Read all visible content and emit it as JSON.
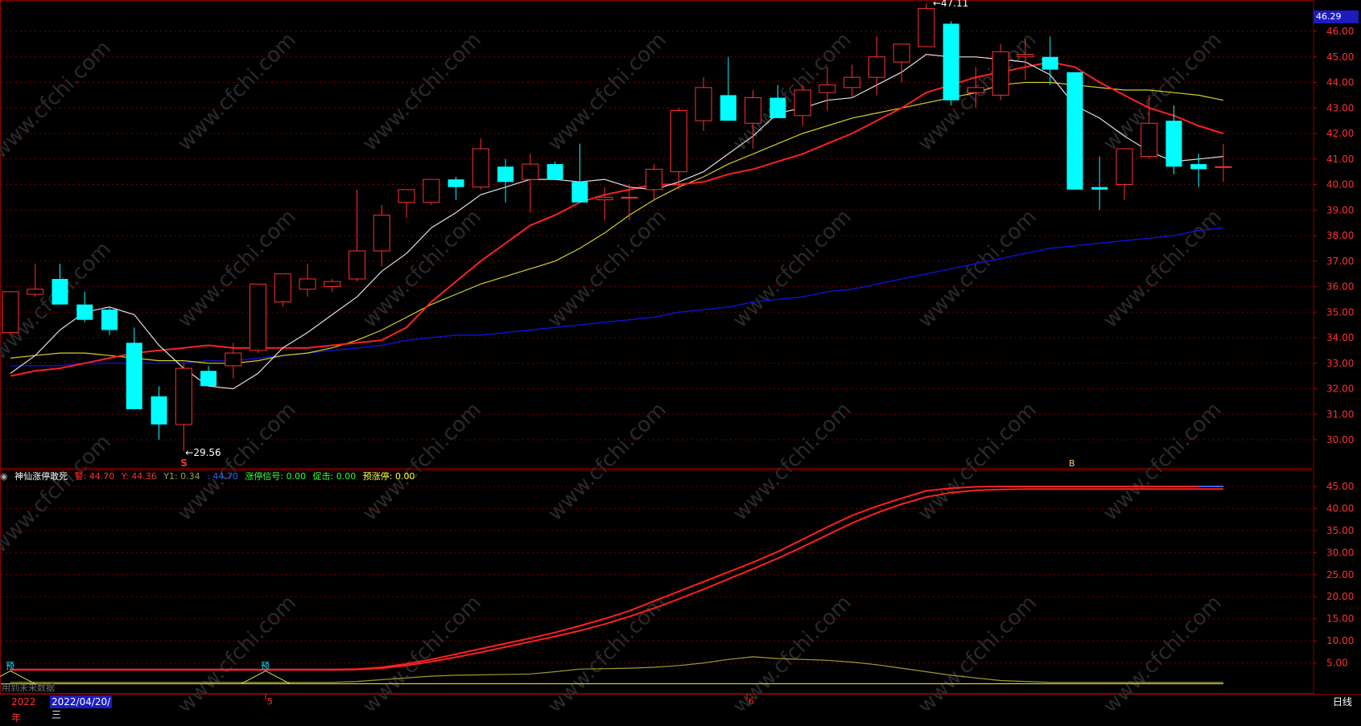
{
  "chart_data": {
    "type": "candlestick",
    "period": "日线",
    "year_label": "2022年",
    "cursor_date": "2022/04/20/三",
    "current_price": "46.29",
    "ylim": [
      29.3,
      46.6
    ],
    "y_ticks": [
      "46.00",
      "45.00",
      "44.00",
      "43.00",
      "42.00",
      "41.00",
      "40.00",
      "39.00",
      "38.00",
      "37.00",
      "36.00",
      "35.00",
      "34.00",
      "33.00",
      "32.00",
      "31.00",
      "30.00"
    ],
    "candles": [
      {
        "o": 34.2,
        "h": 35.8,
        "l": 34.1,
        "c": 35.8
      },
      {
        "o": 35.7,
        "h": 36.9,
        "l": 35.6,
        "c": 35.9
      },
      {
        "o": 36.3,
        "h": 36.9,
        "l": 35.3,
        "c": 35.3
      },
      {
        "o": 35.3,
        "h": 35.8,
        "l": 34.6,
        "c": 34.7
      },
      {
        "o": 35.1,
        "h": 35.2,
        "l": 34.1,
        "c": 34.3
      },
      {
        "o": 33.8,
        "h": 34.4,
        "l": 31.2,
        "c": 31.2
      },
      {
        "o": 31.7,
        "h": 32.1,
        "l": 30.0,
        "c": 30.6
      },
      {
        "o": 30.6,
        "h": 33.0,
        "l": 29.56,
        "c": 32.8
      },
      {
        "o": 32.7,
        "h": 32.9,
        "l": 32.1,
        "c": 32.1
      },
      {
        "o": 32.9,
        "h": 33.8,
        "l": 32.4,
        "c": 33.4
      },
      {
        "o": 33.5,
        "h": 36.1,
        "l": 33.4,
        "c": 36.1
      },
      {
        "o": 35.4,
        "h": 36.5,
        "l": 35.2,
        "c": 36.5
      },
      {
        "o": 35.9,
        "h": 36.9,
        "l": 35.6,
        "c": 36.3
      },
      {
        "o": 36.0,
        "h": 36.3,
        "l": 35.8,
        "c": 36.2
      },
      {
        "o": 36.3,
        "h": 39.8,
        "l": 36.2,
        "c": 37.4
      },
      {
        "o": 37.4,
        "h": 39.2,
        "l": 36.8,
        "c": 38.8
      },
      {
        "o": 39.3,
        "h": 39.7,
        "l": 38.7,
        "c": 39.8
      },
      {
        "o": 39.3,
        "h": 40.2,
        "l": 39.2,
        "c": 40.2
      },
      {
        "o": 40.2,
        "h": 40.3,
        "l": 39.4,
        "c": 39.9
      },
      {
        "o": 39.9,
        "h": 41.8,
        "l": 39.8,
        "c": 41.4
      },
      {
        "o": 40.7,
        "h": 41.0,
        "l": 39.3,
        "c": 40.1
      },
      {
        "o": 40.2,
        "h": 41.2,
        "l": 38.9,
        "c": 40.8
      },
      {
        "o": 40.8,
        "h": 40.9,
        "l": 40.2,
        "c": 40.2
      },
      {
        "o": 40.1,
        "h": 41.6,
        "l": 39.3,
        "c": 39.3
      },
      {
        "o": 39.4,
        "h": 39.9,
        "l": 38.6,
        "c": 39.5
      },
      {
        "o": 39.5,
        "h": 40.0,
        "l": 38.6,
        "c": 39.5
      },
      {
        "o": 39.8,
        "h": 40.8,
        "l": 39.4,
        "c": 40.6
      },
      {
        "o": 40.5,
        "h": 43.0,
        "l": 39.8,
        "c": 42.9
      },
      {
        "o": 42.5,
        "h": 44.2,
        "l": 42.1,
        "c": 43.8
      },
      {
        "o": 43.5,
        "h": 45.0,
        "l": 42.5,
        "c": 42.5
      },
      {
        "o": 42.4,
        "h": 43.7,
        "l": 41.4,
        "c": 43.4
      },
      {
        "o": 43.4,
        "h": 43.9,
        "l": 42.6,
        "c": 42.6
      },
      {
        "o": 42.7,
        "h": 43.9,
        "l": 42.3,
        "c": 43.7
      },
      {
        "o": 43.6,
        "h": 44.6,
        "l": 42.9,
        "c": 43.9
      },
      {
        "o": 43.8,
        "h": 44.7,
        "l": 43.4,
        "c": 44.2
      },
      {
        "o": 44.2,
        "h": 45.8,
        "l": 43.5,
        "c": 45.0
      },
      {
        "o": 44.8,
        "h": 45.5,
        "l": 44.0,
        "c": 45.5
      },
      {
        "o": 45.4,
        "h": 47.11,
        "l": 45.4,
        "c": 46.9
      },
      {
        "o": 46.3,
        "h": 46.4,
        "l": 43.1,
        "c": 43.3
      },
      {
        "o": 43.6,
        "h": 44.6,
        "l": 43.0,
        "c": 43.8
      },
      {
        "o": 43.5,
        "h": 45.5,
        "l": 43.3,
        "c": 45.2
      },
      {
        "o": 45.0,
        "h": 45.7,
        "l": 44.1,
        "c": 45.1
      },
      {
        "o": 45.0,
        "h": 45.8,
        "l": 43.9,
        "c": 44.5
      },
      {
        "o": 44.4,
        "h": 44.4,
        "l": 39.8,
        "c": 39.8
      },
      {
        "o": 39.9,
        "h": 41.1,
        "l": 39.0,
        "c": 39.8
      },
      {
        "o": 40.0,
        "h": 41.4,
        "l": 39.4,
        "c": 41.4
      },
      {
        "o": 41.1,
        "h": 43.5,
        "l": 41.0,
        "c": 42.4
      },
      {
        "o": 42.5,
        "h": 43.1,
        "l": 40.4,
        "c": 40.7
      },
      {
        "o": 40.8,
        "h": 41.2,
        "l": 39.9,
        "c": 40.6
      },
      {
        "o": 40.7,
        "h": 41.6,
        "l": 40.1,
        "c": 40.7
      }
    ],
    "ma5": [
      32.6,
      33.3,
      34.3,
      35.0,
      35.2,
      34.9,
      33.7,
      32.8,
      32.1,
      32.0,
      32.6,
      33.6,
      34.2,
      34.9,
      35.6,
      36.6,
      37.3,
      38.3,
      38.9,
      39.6,
      39.9,
      40.2,
      40.2,
      40.1,
      40.2,
      39.9,
      39.8,
      40.1,
      40.5,
      41.2,
      41.9,
      42.8,
      43.0,
      43.3,
      43.4,
      43.9,
      44.4,
      45.1,
      45.0,
      45.0,
      44.9,
      44.8,
      44.3,
      43.1,
      42.6,
      41.9,
      41.3,
      40.9,
      41.0,
      41.1
    ],
    "ma10": [
      32.5,
      32.7,
      32.8,
      33.0,
      33.2,
      33.4,
      33.5,
      33.6,
      33.7,
      33.6,
      33.6,
      33.6,
      33.6,
      33.7,
      33.8,
      33.9,
      34.4,
      35.4,
      36.2,
      37.0,
      37.7,
      38.4,
      38.8,
      39.3,
      39.6,
      39.8,
      40.0,
      40.0,
      40.1,
      40.4,
      40.6,
      40.9,
      41.2,
      41.6,
      42.0,
      42.5,
      43.0,
      43.6,
      43.9,
      44.2,
      44.4,
      44.6,
      44.8,
      44.6,
      44.0,
      43.5,
      43.0,
      42.7,
      42.3,
      42.0
    ],
    "ma20": [
      33.2,
      33.3,
      33.4,
      33.4,
      33.3,
      33.2,
      33.1,
      33.1,
      33.0,
      33.0,
      33.1,
      33.3,
      33.4,
      33.6,
      33.9,
      34.3,
      34.8,
      35.3,
      35.7,
      36.1,
      36.4,
      36.7,
      37.0,
      37.5,
      38.1,
      38.8,
      39.4,
      39.9,
      40.3,
      40.8,
      41.2,
      41.6,
      42.0,
      42.3,
      42.6,
      42.8,
      43.0,
      43.2,
      43.4,
      43.6,
      43.9,
      44.0,
      44.0,
      43.9,
      43.8,
      43.7,
      43.7,
      43.6,
      43.5,
      43.3
    ],
    "ma60": [
      32.9,
      32.9,
      32.9,
      33.0,
      33.0,
      33.0,
      33.0,
      33.0,
      33.1,
      33.1,
      33.2,
      33.3,
      33.4,
      33.5,
      33.6,
      33.7,
      33.9,
      34.0,
      34.1,
      34.1,
      34.2,
      34.3,
      34.4,
      34.5,
      34.6,
      34.7,
      34.8,
      35.0,
      35.1,
      35.2,
      35.4,
      35.5,
      35.6,
      35.8,
      35.9,
      36.1,
      36.3,
      36.5,
      36.7,
      36.9,
      37.1,
      37.3,
      37.5,
      37.6,
      37.7,
      37.8,
      37.9,
      38.0,
      38.2,
      38.3
    ],
    "annotations": {
      "high_label": "47.11",
      "low_label": "29.56",
      "s_marker": "S",
      "b_marker": "B"
    },
    "indicator": {
      "name": "神仙涨停敢死",
      "fields": [
        {
          "label": "警: 44.70",
          "color": "#ff3030"
        },
        {
          "label": "Y: 44.36",
          "color": "#ff3030"
        },
        {
          "label": "Y1: 0.34",
          "color": "#a0a040"
        },
        {
          "label": ": 44.70",
          "color": "#3060ff"
        },
        {
          "label": "涨停信号: 0.00",
          "color": "#30ff30"
        },
        {
          "label": "促击: 0.00",
          "color": "#30ff30"
        },
        {
          "label": "预涨停: 0.00",
          "color": "#ffff30"
        }
      ],
      "ylim": [
        0,
        48
      ],
      "y_ticks": [
        "45.00",
        "40.00",
        "35.00",
        "30.00",
        "25.00",
        "20.00",
        "15.00",
        "10.00",
        "5.00"
      ],
      "line_a": [
        3.5,
        3.5,
        3.5,
        3.5,
        3.5,
        3.5,
        3.5,
        3.5,
        3.5,
        3.5,
        3.5,
        3.5,
        3.5,
        3.5,
        3.6,
        4.0,
        4.8,
        5.8,
        7.0,
        8.2,
        9.4,
        10.6,
        11.9,
        13.4,
        15.0,
        16.8,
        19.0,
        21.2,
        23.4,
        25.6,
        27.8,
        30.2,
        33.0,
        35.8,
        38.4,
        40.5,
        42.3,
        44.0,
        44.6,
        44.9,
        45.0,
        45.0,
        45.0,
        45.0,
        45.0,
        45.0,
        45.0,
        45.0,
        45.0,
        45.0
      ],
      "line_b": [
        3.4,
        3.4,
        3.4,
        3.4,
        3.4,
        3.4,
        3.4,
        3.4,
        3.4,
        3.4,
        3.4,
        3.4,
        3.4,
        3.4,
        3.5,
        3.8,
        4.4,
        5.3,
        6.3,
        7.4,
        8.6,
        9.8,
        11.0,
        12.3,
        13.8,
        15.5,
        17.4,
        19.5,
        21.7,
        24.0,
        26.3,
        28.7,
        31.3,
        34.0,
        36.7,
        39.0,
        41.0,
        42.6,
        43.6,
        44.1,
        44.3,
        44.4,
        44.4,
        44.4,
        44.4,
        44.4,
        44.4,
        44.4,
        44.4,
        44.4
      ],
      "yellow_line": [
        0.6,
        0.6,
        0.6,
        0.6,
        0.6,
        0.6,
        0.6,
        0.6,
        0.6,
        0.6,
        0.6,
        0.6,
        0.6,
        0.6,
        0.8,
        1.2,
        1.6,
        2.0,
        2.2,
        2.3,
        2.4,
        2.5,
        3.0,
        3.6,
        3.7,
        3.8,
        4.0,
        4.4,
        5.0,
        5.8,
        6.4,
        6.0,
        5.8,
        5.6,
        5.2,
        4.6,
        3.8,
        3.0,
        2.2,
        1.6,
        1.0,
        0.8,
        0.6,
        0.6,
        0.6,
        0.6,
        0.6,
        0.6,
        0.6,
        0.6
      ],
      "pre_labels": [
        "预",
        "预"
      ],
      "month_labels": [
        "5",
        "6"
      ]
    },
    "watermark": "www.cfchi.com",
    "hint": "用到未来数据"
  }
}
